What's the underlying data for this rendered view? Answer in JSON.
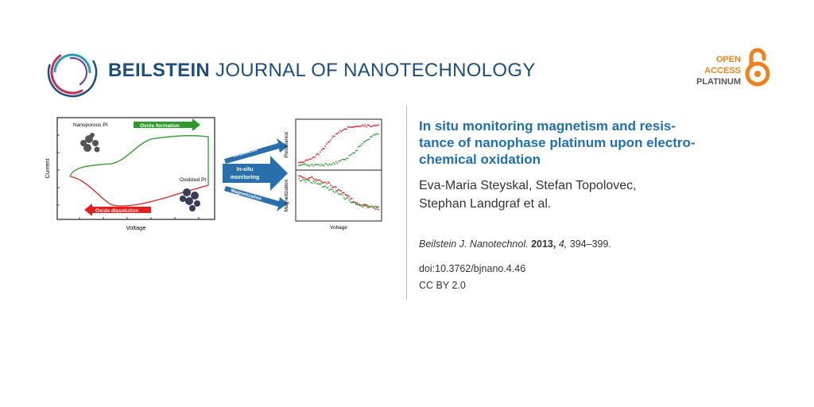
{
  "journal": {
    "name_bold": "BEILSTEIN",
    "name_rest": " JOURNAL OF NANOTECHNOLOGY"
  },
  "open_access": {
    "line1": "OPEN",
    "line2": "ACCESS",
    "line3": "PLATINUM"
  },
  "article": {
    "title": "In situ monitoring magnetism and resistance of nanophase platinum upon electrochemical oxidation",
    "title_lines": [
      "In situ monitoring magnetism and resis-",
      "tance of nanophase platinum upon electro-",
      "chemical oxidation"
    ],
    "authors_line1": "Eva-Maria Steyskal, Stefan Topolovec,",
    "authors_line2": "Stephan Landgraf et al.",
    "citation_journal": "Beilstein J. Nanotechnol.",
    "citation_year": "2013,",
    "citation_volume": "4,",
    "citation_pages": "394–399.",
    "doi": "doi:10.3762/bjnano.4.46",
    "license": "CC BY 2.0"
  },
  "graphic": {
    "cv_plot": {
      "ylabel": "Current",
      "xlabel": "Voltage",
      "label_nanoporous": "Nanoporous Pt",
      "label_oxidized": "Oxidized Pt",
      "arrow_formation": "Oxide formation",
      "arrow_dissolution": "Oxide dissolution"
    },
    "center_arrow": {
      "line1": "In-situ",
      "line2": "monitoring",
      "resistance": "Resistance",
      "magnetization": "Magnetization"
    },
    "right_plots": {
      "top_ylabel": "Resistance",
      "bottom_ylabel": "Magnetization",
      "xlabel": "Voltage"
    },
    "colors": {
      "red": "#e02020",
      "green": "#2e9a2e",
      "blue": "#2a6fad",
      "title_blue": "#1f6fb3",
      "journal_blue": "#1f4e7a",
      "oa_orange": "#f0821e"
    }
  }
}
